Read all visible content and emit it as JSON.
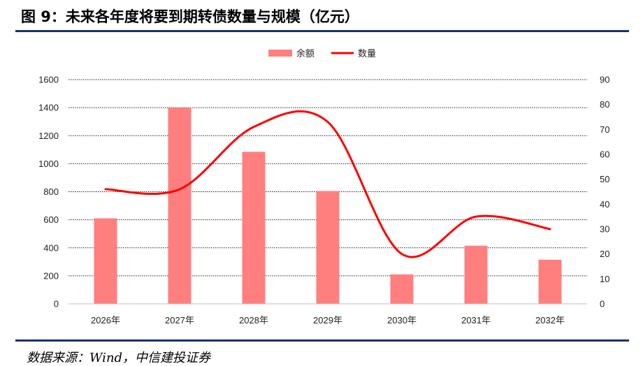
{
  "title": "图 9：未来各年度将要到期转债数量与规模（亿元）",
  "source": "数据来源：Wind，中信建投证券",
  "chart_data": {
    "type": "bar",
    "categories": [
      "2026年",
      "2027年",
      "2028年",
      "2029年",
      "2030年",
      "2031年",
      "2032年"
    ],
    "series": [
      {
        "name": "余额",
        "type": "bar",
        "axis": "left",
        "color": "#ff7f7f",
        "values": [
          610,
          1400,
          1085,
          805,
          210,
          415,
          315
        ]
      },
      {
        "name": "数量",
        "type": "line",
        "axis": "right",
        "color": "#ff0000",
        "values": [
          46,
          46,
          71,
          73,
          20,
          35,
          30
        ]
      }
    ],
    "y_left": {
      "min": 0,
      "max": 1600,
      "ticks": [
        0,
        200,
        400,
        600,
        800,
        1000,
        1200,
        1400,
        1600
      ]
    },
    "y_right": {
      "min": 0,
      "max": 90,
      "ticks": [
        0,
        10,
        20,
        30,
        40,
        50,
        60,
        70,
        80,
        90
      ]
    },
    "grid": true,
    "legend_position": "top-center"
  }
}
